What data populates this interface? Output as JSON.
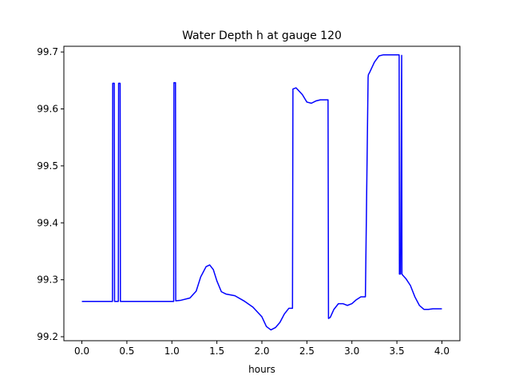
{
  "chart_data": {
    "type": "line",
    "title": "Water Depth h at gauge 120",
    "xlabel": "hours",
    "ylabel": "",
    "xlim": [
      -0.2,
      4.2
    ],
    "ylim": [
      99.193,
      99.71
    ],
    "grid": false,
    "x_ticks": [
      0.0,
      0.5,
      1.0,
      1.5,
      2.0,
      2.5,
      3.0,
      3.5,
      4.0
    ],
    "x_tick_labels": [
      "0.0",
      "0.5",
      "1.0",
      "1.5",
      "2.0",
      "2.5",
      "3.0",
      "3.5",
      "4.0"
    ],
    "y_ticks": [
      99.2,
      99.3,
      99.4,
      99.5,
      99.6,
      99.7
    ],
    "y_tick_labels": [
      "99.2",
      "99.3",
      "99.4",
      "99.5",
      "99.6",
      "99.7"
    ],
    "series": [
      {
        "color": "#0000ff",
        "x": [
          0.0,
          0.34,
          0.343,
          0.36,
          0.363,
          0.405,
          0.408,
          0.425,
          0.428,
          1.02,
          1.023,
          1.04,
          1.043,
          1.1,
          1.2,
          1.27,
          1.32,
          1.38,
          1.42,
          1.46,
          1.5,
          1.55,
          1.6,
          1.7,
          1.8,
          1.9,
          2.0,
          2.05,
          2.1,
          2.15,
          2.2,
          2.25,
          2.3,
          2.34,
          2.345,
          2.38,
          2.45,
          2.5,
          2.55,
          2.6,
          2.65,
          2.7,
          2.735,
          2.74,
          2.76,
          2.8,
          2.85,
          2.9,
          2.95,
          3.0,
          3.05,
          3.1,
          3.15,
          3.18,
          3.183,
          3.2,
          3.25,
          3.3,
          3.35,
          3.4,
          3.45,
          3.5,
          3.525,
          3.528,
          3.54,
          3.553,
          3.556,
          3.565,
          3.6,
          3.65,
          3.7,
          3.75,
          3.8,
          3.85,
          3.9,
          3.95,
          4.0
        ],
        "y": [
          99.262,
          99.262,
          99.645,
          99.645,
          99.262,
          99.262,
          99.645,
          99.645,
          99.262,
          99.262,
          99.646,
          99.646,
          99.263,
          99.264,
          99.268,
          99.28,
          99.305,
          99.323,
          99.326,
          99.318,
          99.298,
          99.279,
          99.275,
          99.272,
          99.263,
          99.252,
          99.235,
          99.218,
          99.212,
          99.216,
          99.225,
          99.24,
          99.25,
          99.25,
          99.635,
          99.637,
          99.625,
          99.612,
          99.61,
          99.614,
          99.616,
          99.616,
          99.616,
          99.232,
          99.234,
          99.248,
          99.258,
          99.258,
          99.255,
          99.258,
          99.265,
          99.27,
          99.27,
          99.655,
          99.66,
          99.665,
          99.682,
          99.693,
          99.695,
          99.695,
          99.695,
          99.695,
          99.695,
          99.31,
          99.31,
          99.694,
          99.31,
          99.308,
          99.302,
          99.29,
          99.27,
          99.255,
          99.248,
          99.248,
          99.249,
          99.249,
          99.249
        ]
      }
    ]
  }
}
